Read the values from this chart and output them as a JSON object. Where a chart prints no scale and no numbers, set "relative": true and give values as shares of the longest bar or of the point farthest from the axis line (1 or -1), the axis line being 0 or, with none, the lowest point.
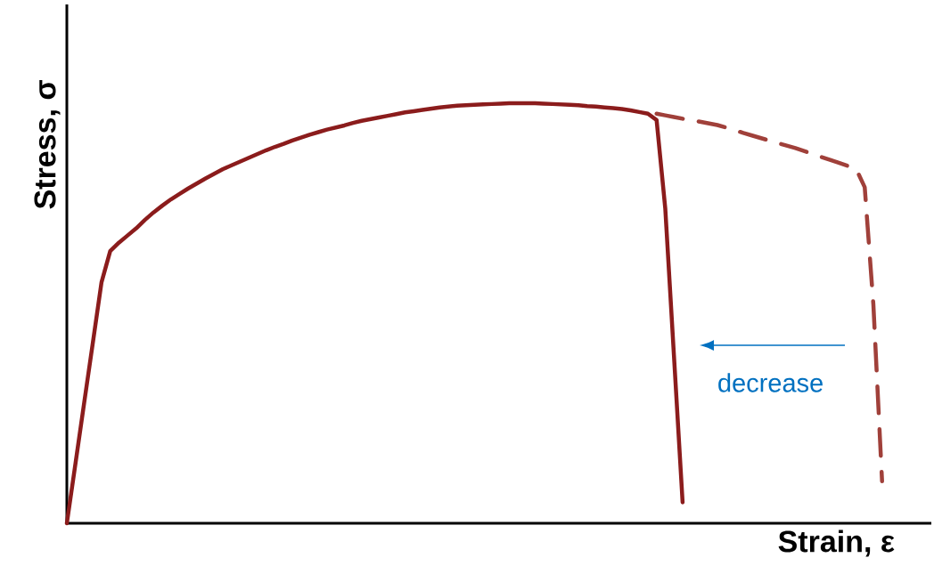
{
  "chart_data": {
    "type": "line",
    "relative": true,
    "xlabel": "Strain, ε",
    "ylabel": "Stress, σ",
    "annotations": [
      "decrease"
    ],
    "categories": [
      null,
      null,
      null,
      null,
      null,
      null,
      null,
      null,
      null,
      null,
      null,
      null,
      null,
      null,
      null,
      null,
      null,
      null,
      null,
      null,
      null,
      null,
      null,
      null,
      null,
      null,
      null,
      null,
      null,
      null,
      null,
      null,
      null,
      null,
      null,
      null,
      null,
      null,
      null,
      null,
      null,
      null,
      null,
      null,
      null,
      null,
      null,
      null,
      null,
      null,
      null,
      null,
      null,
      null,
      null,
      null,
      null,
      null,
      null,
      null,
      null,
      null,
      null,
      null,
      null,
      null,
      null,
      null,
      null,
      null,
      null,
      null,
      null,
      null,
      null,
      null,
      null,
      null,
      null,
      null,
      null,
      null,
      null,
      null,
      null,
      null,
      null,
      null,
      null,
      null,
      null,
      null,
      null,
      null,
      null
    ],
    "series": [
      {
        "color": "#8b1c1c",
        "line_style": "solid",
        "values": [
          0,
          0.143,
          0.287,
          0.43,
          0.574,
          0.648,
          0.668,
          0.685,
          0.702,
          0.722,
          0.74,
          0.756,
          0.771,
          0.784,
          0.797,
          0.809,
          0.821,
          0.832,
          0.843,
          0.852,
          0.861,
          0.87,
          0.879,
          0.888,
          0.896,
          0.903,
          0.911,
          0.918,
          0.925,
          0.931,
          0.937,
          0.942,
          0.947,
          0.953,
          0.958,
          0.962,
          0.966,
          0.97,
          0.974,
          0.978,
          0.981,
          0.984,
          0.987,
          0.99,
          0.992,
          0.994,
          0.995,
          0.996,
          0.997,
          0.998,
          0.999,
          1,
          1,
          1,
          1,
          0.999,
          0.998,
          0.997,
          0.996,
          0.995,
          0.993,
          0.992,
          0.99,
          0.988,
          0.986,
          0.983,
          0.979,
          0.975,
          0.96,
          0.75,
          0.4,
          0.05,
          null,
          null,
          null,
          null,
          null,
          null,
          null,
          null,
          null,
          null,
          null,
          null,
          null,
          null,
          null,
          null,
          null,
          null,
          null,
          null,
          null,
          null,
          null
        ]
      },
      {
        "color": "#a0403a",
        "line_style": "dashed",
        "values": [
          null,
          null,
          null,
          null,
          null,
          null,
          null,
          null,
          null,
          null,
          null,
          null,
          null,
          null,
          null,
          null,
          null,
          null,
          null,
          null,
          null,
          null,
          null,
          null,
          null,
          null,
          null,
          null,
          null,
          null,
          null,
          null,
          null,
          null,
          null,
          null,
          null,
          null,
          null,
          null,
          null,
          null,
          null,
          null,
          null,
          null,
          null,
          null,
          null,
          null,
          null,
          null,
          null,
          null,
          null,
          null,
          null,
          null,
          null,
          null,
          null,
          null,
          null,
          null,
          null,
          null,
          null,
          null,
          0.975,
          0.971,
          0.967,
          0.963,
          0.96,
          0.956,
          0.952,
          0.948,
          0.942,
          0.936,
          0.929,
          0.923,
          0.917,
          0.911,
          0.905,
          0.899,
          0.893,
          0.886,
          0.879,
          0.872,
          0.865,
          0.858,
          0.851,
          0.844,
          0.8,
          0.52,
          0.1
        ]
      }
    ]
  }
}
